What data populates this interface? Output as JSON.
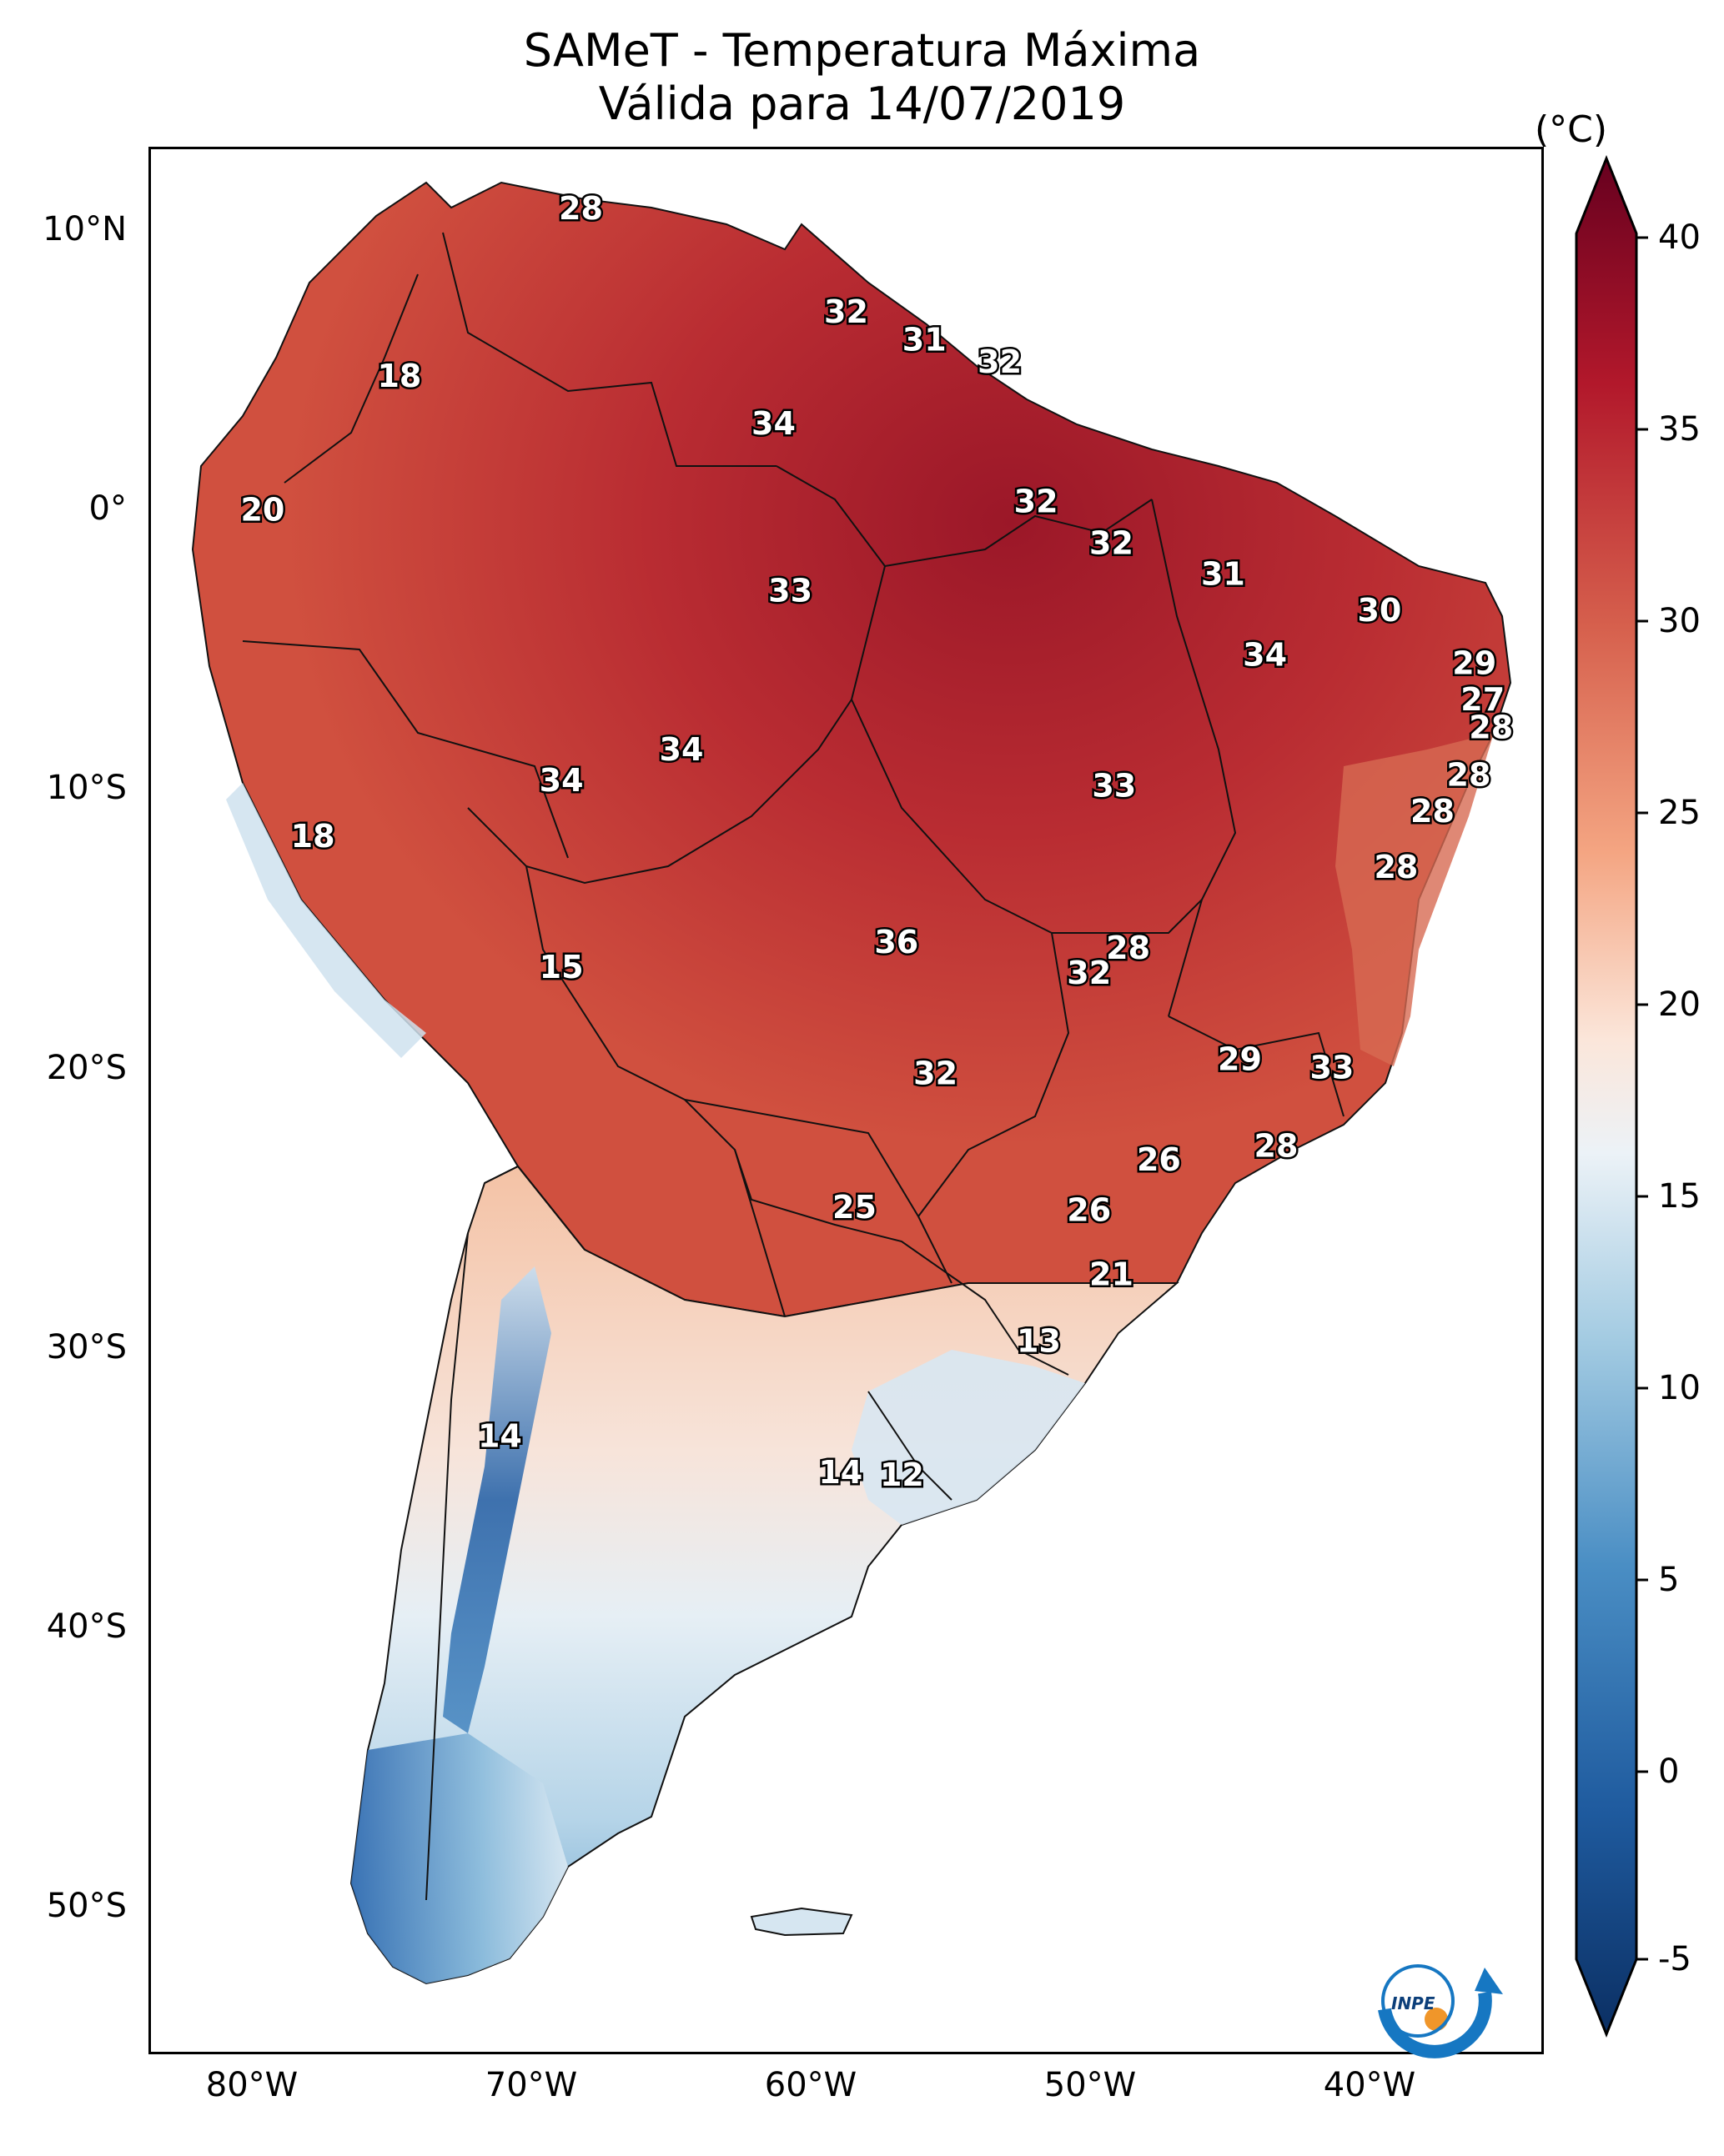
{
  "title": {
    "line1": "SAMeT - Temperatura Máxima",
    "line2": "Válida para 14/07/2019"
  },
  "axes": {
    "lat_ticks": [
      "10°N",
      "0°",
      "10°S",
      "20°S",
      "30°S",
      "40°S",
      "50°S"
    ],
    "lon_ticks": [
      "80°W",
      "70°W",
      "60°W",
      "50°W",
      "40°W"
    ]
  },
  "colorbar": {
    "unit": "(°C)",
    "ticks": [
      "40",
      "35",
      "30",
      "25",
      "20",
      "15",
      "10",
      "5",
      "0",
      "-5"
    ],
    "range": [
      -5,
      40
    ],
    "colormap": "RdBu_r",
    "colors": {
      "min": "#0b2f63",
      "low": "#2f6eb0",
      "mid_low": "#a9cfe4",
      "mid": "#f5f5f5",
      "mid_high": "#f5b093",
      "high": "#c83a37",
      "max": "#680a1d"
    }
  },
  "map_labels": [
    {
      "text": "28",
      "lon": -67.2,
      "lat": 10.5
    },
    {
      "text": "18",
      "lon": -73.7,
      "lat": 4.5
    },
    {
      "text": "32",
      "lon": -57.7,
      "lat": 6.8
    },
    {
      "text": "31",
      "lon": -54.9,
      "lat": 5.8
    },
    {
      "text": "32",
      "lon": -52.2,
      "lat": 5.0
    },
    {
      "text": "34",
      "lon": -60.3,
      "lat": 2.8
    },
    {
      "text": "20",
      "lon": -78.6,
      "lat": -0.3
    },
    {
      "text": "32",
      "lon": -50.9,
      "lat": 0.0
    },
    {
      "text": "32",
      "lon": -48.2,
      "lat": -1.5
    },
    {
      "text": "33",
      "lon": -59.7,
      "lat": -3.2
    },
    {
      "text": "31",
      "lon": -44.2,
      "lat": -2.6
    },
    {
      "text": "30",
      "lon": -38.6,
      "lat": -3.9
    },
    {
      "text": "34",
      "lon": -42.7,
      "lat": -5.5
    },
    {
      "text": "29",
      "lon": -35.2,
      "lat": -5.8
    },
    {
      "text": "27",
      "lon": -34.9,
      "lat": -7.1
    },
    {
      "text": "28",
      "lon": -34.6,
      "lat": -8.1
    },
    {
      "text": "34",
      "lon": -63.6,
      "lat": -8.9
    },
    {
      "text": "34",
      "lon": -67.9,
      "lat": -10.0
    },
    {
      "text": "33",
      "lon": -48.1,
      "lat": -10.2
    },
    {
      "text": "28",
      "lon": -35.4,
      "lat": -9.8
    },
    {
      "text": "28",
      "lon": -36.7,
      "lat": -11.1
    },
    {
      "text": "28",
      "lon": -38.0,
      "lat": -13.1
    },
    {
      "text": "18",
      "lon": -76.8,
      "lat": -12.0
    },
    {
      "text": "36",
      "lon": -55.9,
      "lat": -15.8
    },
    {
      "text": "28",
      "lon": -47.6,
      "lat": -16.0
    },
    {
      "text": "32",
      "lon": -49.0,
      "lat": -16.9
    },
    {
      "text": "15",
      "lon": -67.9,
      "lat": -16.7
    },
    {
      "text": "29",
      "lon": -43.6,
      "lat": -20.0
    },
    {
      "text": "33",
      "lon": -40.3,
      "lat": -20.3
    },
    {
      "text": "32",
      "lon": -54.5,
      "lat": -20.5
    },
    {
      "text": "28",
      "lon": -42.3,
      "lat": -23.1
    },
    {
      "text": "26",
      "lon": -46.5,
      "lat": -23.6
    },
    {
      "text": "25",
      "lon": -57.4,
      "lat": -25.3
    },
    {
      "text": "26",
      "lon": -49.0,
      "lat": -25.4
    },
    {
      "text": "21",
      "lon": -48.2,
      "lat": -27.7
    },
    {
      "text": "13",
      "lon": -50.8,
      "lat": -30.1
    },
    {
      "text": "14",
      "lon": -70.1,
      "lat": -33.5
    },
    {
      "text": "14",
      "lon": -57.9,
      "lat": -34.8
    },
    {
      "text": "12",
      "lon": -55.7,
      "lat": -34.9
    }
  ],
  "logo": {
    "text": "INPE"
  }
}
